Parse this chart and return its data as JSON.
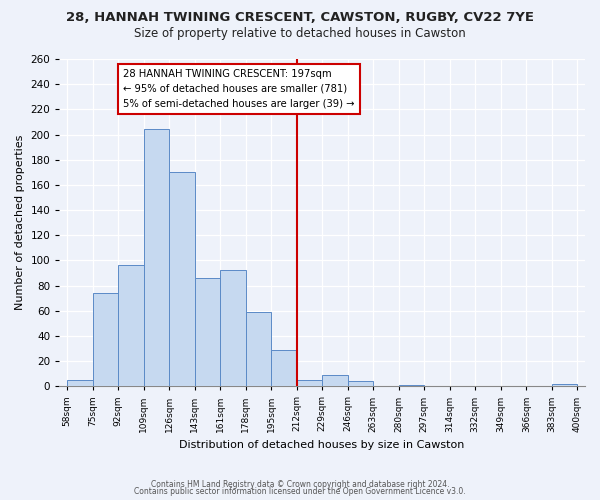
{
  "title": "28, HANNAH TWINING CRESCENT, CAWSTON, RUGBY, CV22 7YE",
  "subtitle": "Size of property relative to detached houses in Cawston",
  "xlabel": "Distribution of detached houses by size in Cawston",
  "ylabel": "Number of detached properties",
  "bin_labels": [
    "58sqm",
    "75sqm",
    "92sqm",
    "109sqm",
    "126sqm",
    "143sqm",
    "161sqm",
    "178sqm",
    "195sqm",
    "212sqm",
    "229sqm",
    "246sqm",
    "263sqm",
    "280sqm",
    "297sqm",
    "314sqm",
    "332sqm",
    "349sqm",
    "366sqm",
    "383sqm",
    "400sqm"
  ],
  "bar_heights": [
    5,
    74,
    96,
    204,
    170,
    86,
    92,
    59,
    29,
    5,
    9,
    4,
    0,
    1,
    0,
    0,
    0,
    0,
    0,
    2
  ],
  "bar_color": "#c6d9f0",
  "bar_edge_color": "#5b8ac7",
  "vline_x_index": 9,
  "vline_color": "#cc0000",
  "ylim": [
    0,
    260
  ],
  "yticks": [
    0,
    20,
    40,
    60,
    80,
    100,
    120,
    140,
    160,
    180,
    200,
    220,
    240,
    260
  ],
  "annotation_title": "28 HANNAH TWINING CRESCENT: 197sqm",
  "annotation_line1": "← 95% of detached houses are smaller (781)",
  "annotation_line2": "5% of semi-detached houses are larger (39) →",
  "annotation_box_color": "#ffffff",
  "annotation_box_edge": "#cc0000",
  "footer1": "Contains HM Land Registry data © Crown copyright and database right 2024.",
  "footer2": "Contains public sector information licensed under the Open Government Licence v3.0.",
  "background_color": "#eef2fa"
}
